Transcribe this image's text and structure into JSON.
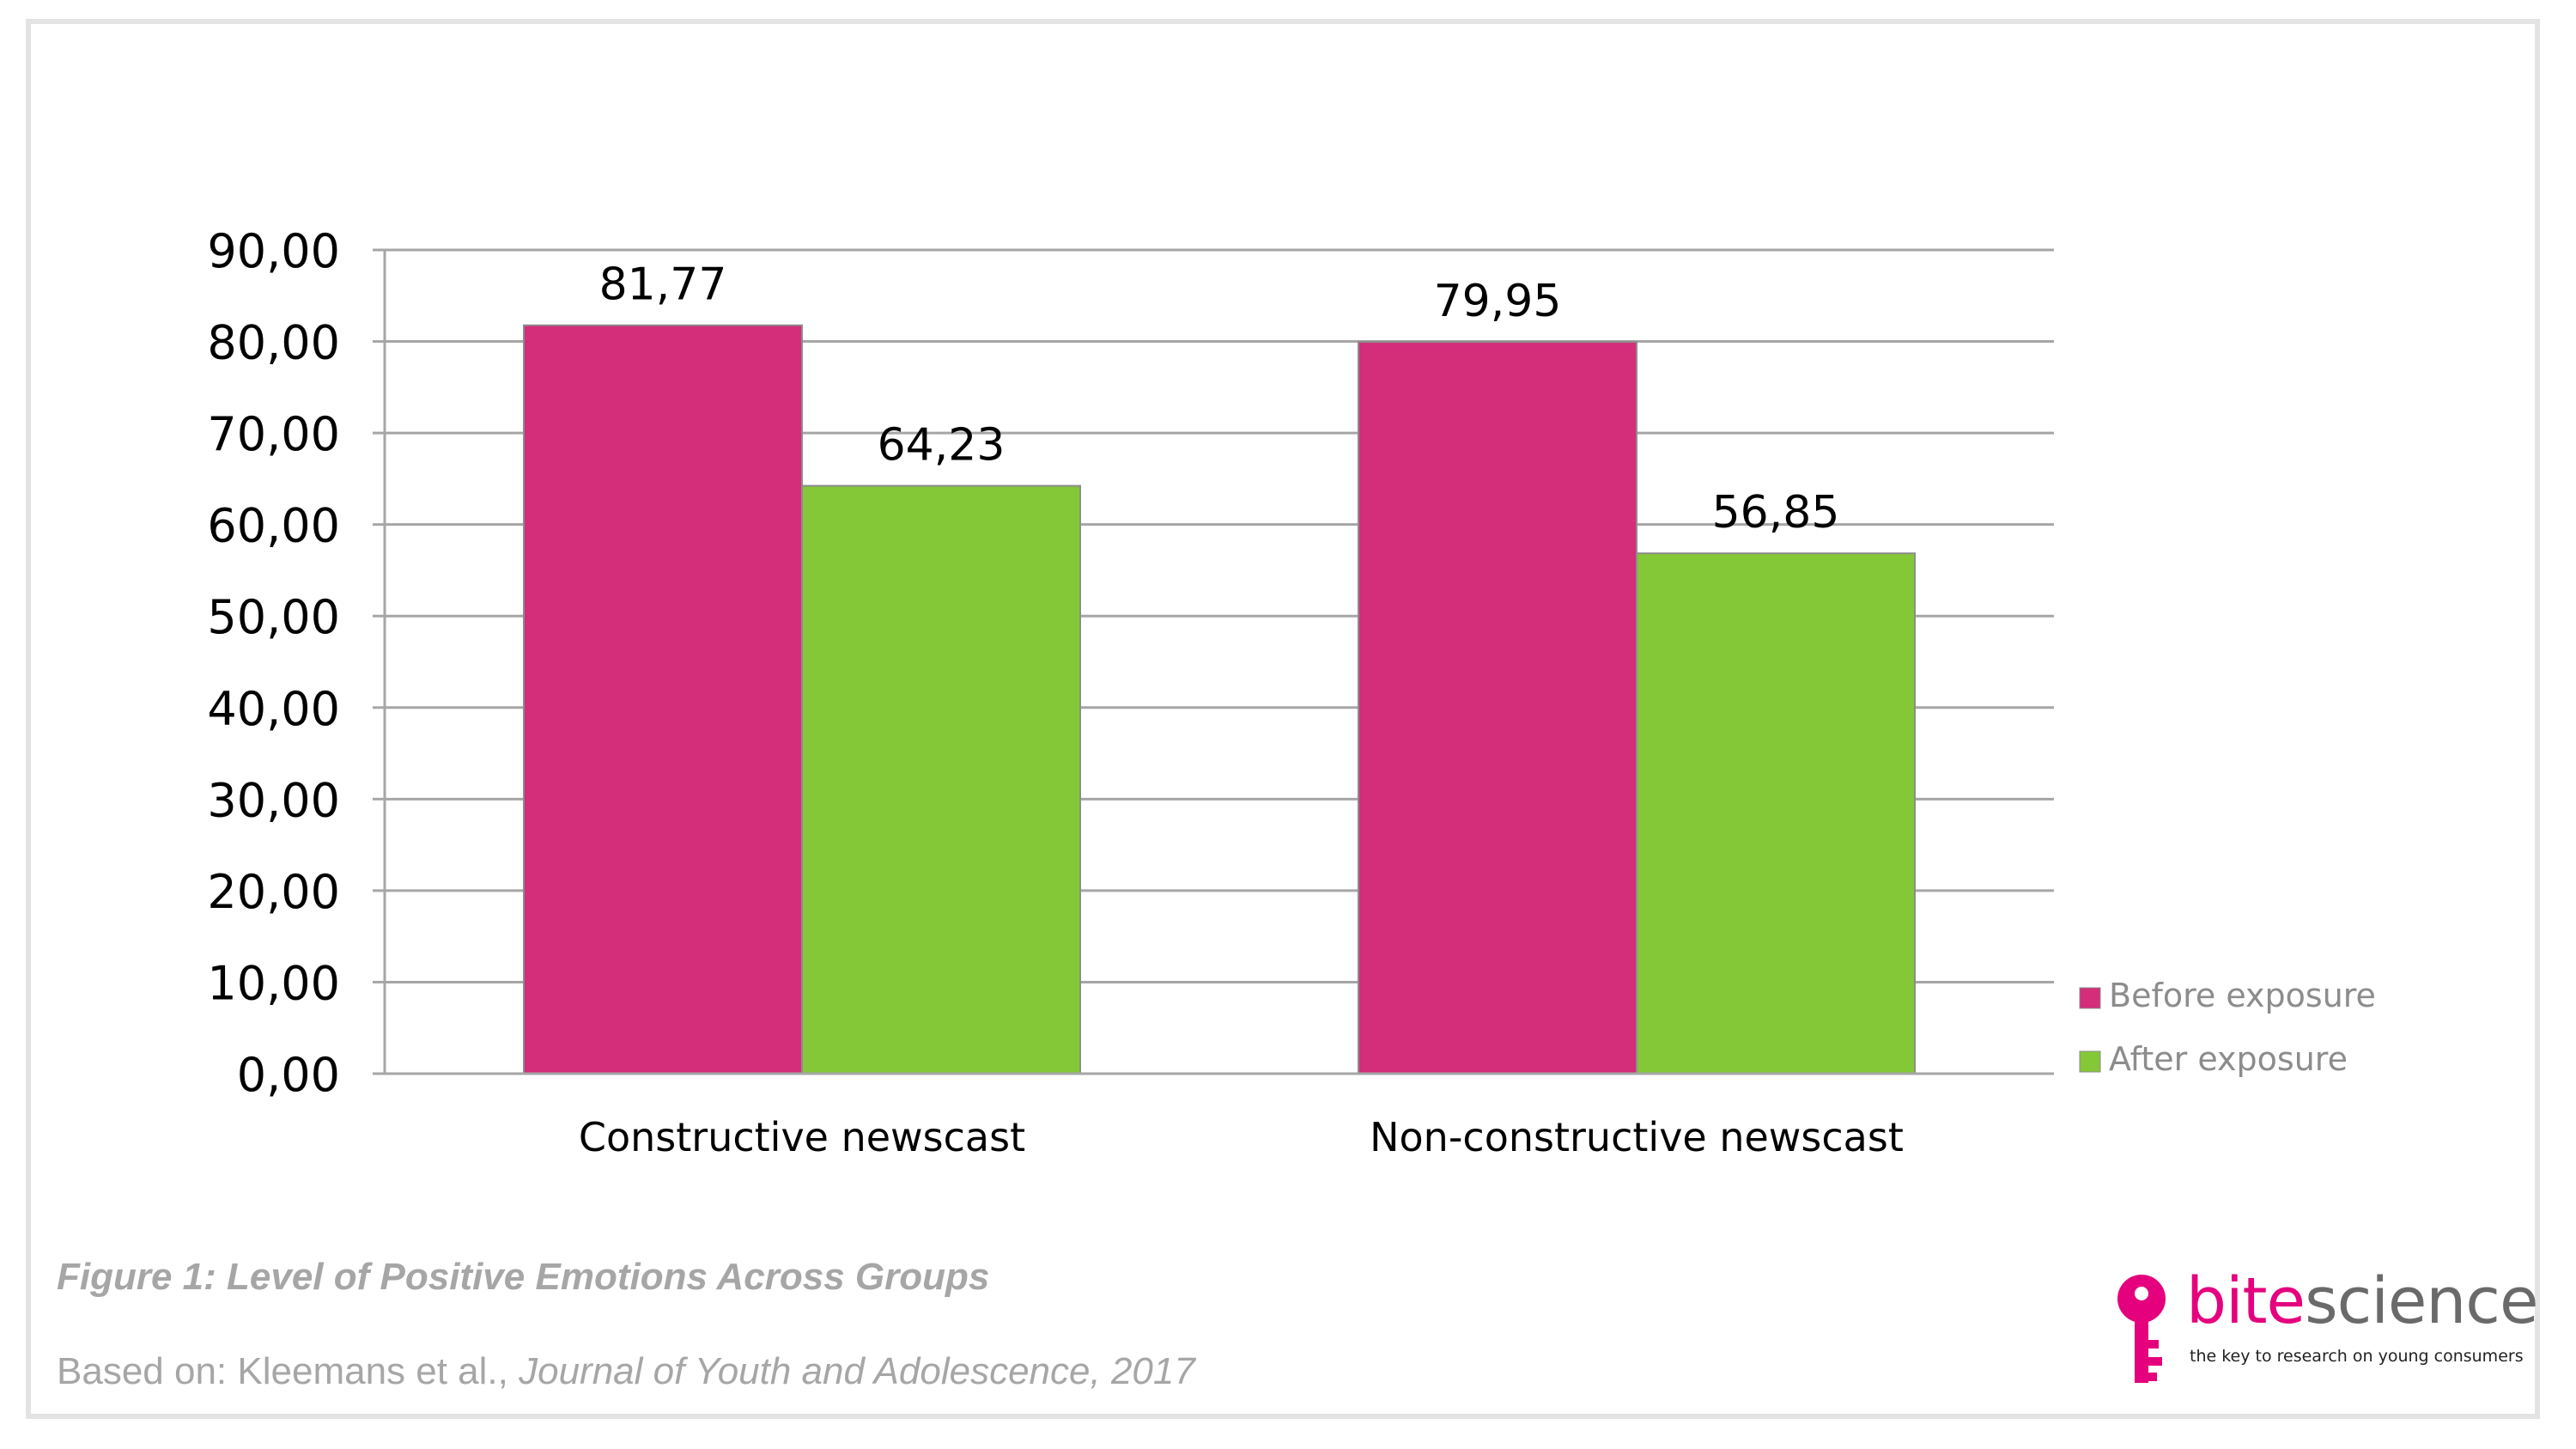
{
  "chart_data": {
    "type": "bar",
    "categories": [
      "Constructive newscast",
      "Non-constructive newscast"
    ],
    "series": [
      {
        "name": "Before exposure",
        "values": [
          81.77,
          79.95
        ],
        "labels": [
          "81,77",
          "79,95"
        ],
        "color": "#d42d7a"
      },
      {
        "name": "After exposure",
        "values": [
          64.23,
          56.85
        ],
        "labels": [
          "64,23",
          "56,85"
        ],
        "color": "#84c737"
      }
    ],
    "ylim": [
      0,
      90
    ],
    "yticks": [
      0,
      10,
      20,
      30,
      40,
      50,
      60,
      70,
      80,
      90
    ],
    "ytick_labels": [
      "0,00",
      "10,00",
      "20,00",
      "30,00",
      "40,00",
      "50,00",
      "60,00",
      "70,00",
      "80,00",
      "90,00"
    ],
    "grid": true,
    "legend_position": "right-bottom",
    "title": "",
    "xlabel": "",
    "ylabel": ""
  },
  "caption": {
    "figure_title": "Figure 1: Level of Positive Emotions Across Groups",
    "source_prefix": "Based on: Kleemans et al., ",
    "source_journal": "Journal of Youth and Adolescence, 2017"
  },
  "logo": {
    "word_part1": "bite",
    "word_part2": "science",
    "tagline": "the key to research on young consumers",
    "brand_color": "#e5007e",
    "icon": "key-icon"
  }
}
